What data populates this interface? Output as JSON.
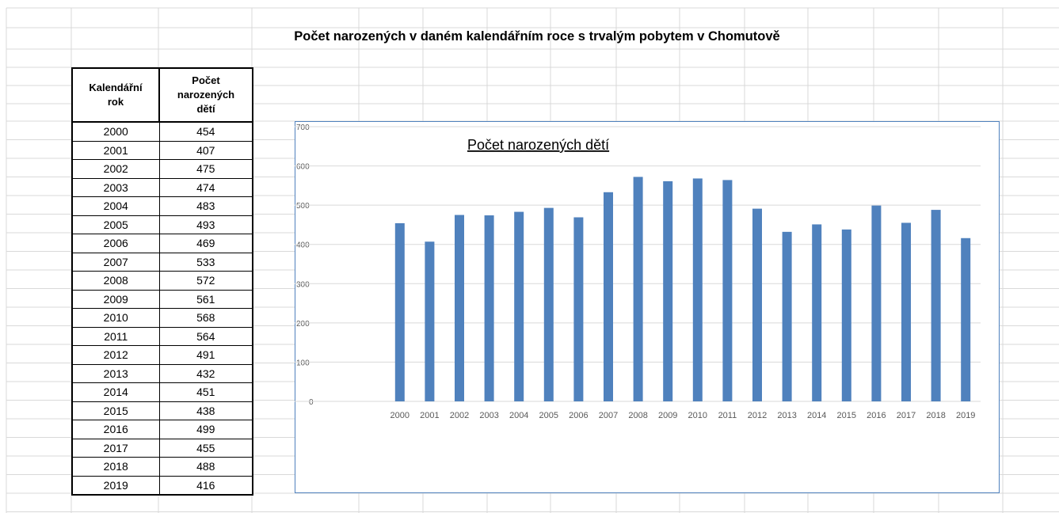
{
  "title": "Počet narozených v daném kalendářním roce s trvalým pobytem v Chomutově",
  "table": {
    "headers": [
      "Kalendářní rok",
      "Počet narozených dětí"
    ]
  },
  "chart_data": {
    "type": "bar",
    "title": "Počet narozených dětí",
    "categories": [
      "2000",
      "2001",
      "2002",
      "2003",
      "2004",
      "2005",
      "2006",
      "2007",
      "2008",
      "2009",
      "2010",
      "2011",
      "2012",
      "2013",
      "2014",
      "2015",
      "2016",
      "2017",
      "2018",
      "2019"
    ],
    "values": [
      454,
      407,
      475,
      474,
      483,
      493,
      469,
      533,
      572,
      561,
      568,
      564,
      491,
      432,
      451,
      438,
      499,
      455,
      488,
      416
    ],
    "color": "#4f81bd",
    "ylim": [
      0,
      700
    ],
    "yticks": [
      0,
      100,
      200,
      300,
      400,
      500,
      600,
      700
    ],
    "grid": true
  }
}
